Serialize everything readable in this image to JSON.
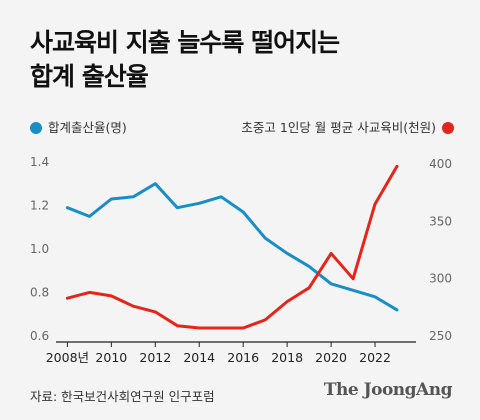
{
  "title": {
    "line1": "사교육비 지출 늘수록 떨어지는",
    "line2": "합계 출산율"
  },
  "footer": {
    "source": "자료: 한국보건사회연구원 인구포럼",
    "brand": "The JoongAng"
  },
  "chart_data": {
    "type": "line",
    "x": [
      2008,
      2009,
      2010,
      2011,
      2012,
      2013,
      2014,
      2015,
      2016,
      2017,
      2018,
      2019,
      2020,
      2021,
      2022,
      2023
    ],
    "x_tick_labels": [
      "2008년",
      "2010",
      "2012",
      "2014",
      "2016",
      "2018",
      "2020",
      "2022"
    ],
    "x_tick_values": [
      2008,
      2010,
      2012,
      2014,
      2016,
      2018,
      2020,
      2022
    ],
    "xlim": [
      2007.3,
      2023.5
    ],
    "series": [
      {
        "name": "합계출산율(명)",
        "axis": "left",
        "color": "#1a8dc4",
        "values": [
          1.19,
          1.15,
          1.23,
          1.24,
          1.3,
          1.19,
          1.21,
          1.24,
          1.17,
          1.05,
          0.98,
          0.92,
          0.84,
          0.81,
          0.78,
          0.72
        ]
      },
      {
        "name": "초중고 1인당 월 평균 사교육비(천원)",
        "axis": "right",
        "color": "#e3261c",
        "values": [
          283,
          288,
          285,
          276,
          271,
          259,
          257,
          257,
          257,
          264,
          280,
          292,
          322,
          300,
          365,
          398
        ]
      }
    ],
    "y_left": {
      "ylim": [
        0.6,
        1.4
      ],
      "ticks": [
        0.6,
        0.8,
        1.0,
        1.2,
        1.4
      ],
      "tick_labels": [
        "0.6",
        "0.8",
        "1.0",
        "1.2",
        "1.4"
      ]
    },
    "y_right": {
      "ylim": [
        250,
        400
      ],
      "ticks": [
        250,
        300,
        350,
        400
      ],
      "tick_labels": [
        "250",
        "300",
        "350",
        "400"
      ]
    },
    "grid": false
  }
}
